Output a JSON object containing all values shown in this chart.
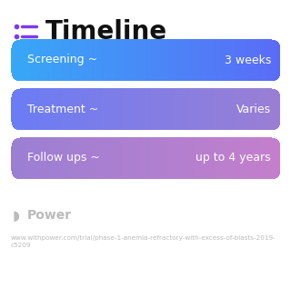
{
  "title": "Timeline",
  "title_fontsize": 20,
  "title_color": "#111111",
  "title_icon_color": "#7C3AED",
  "background_color": "#ffffff",
  "rows": [
    {
      "left_label": "Screening ~",
      "right_label": "3 weeks",
      "color_left": "#38A8F8",
      "color_right": "#5B6CF7"
    },
    {
      "left_label": "Treatment ~",
      "right_label": "Varies",
      "color_left": "#6B7CF5",
      "color_right": "#9B7FD4"
    },
    {
      "left_label": "Follow ups ~",
      "right_label": "up to 4 years",
      "color_left": "#9B7FD4",
      "color_right": "#C47FCC"
    }
  ],
  "watermark_text": "Power",
  "watermark_color": "#bbbbbb",
  "footer_text": "www.withpower.com/trial/phase-1-anemia-refractory-with-excess-of-blasts-2019-\nc5209",
  "footer_color": "#bbbbbb",
  "footer_fontsize": 5.2,
  "watermark_fontsize": 10
}
